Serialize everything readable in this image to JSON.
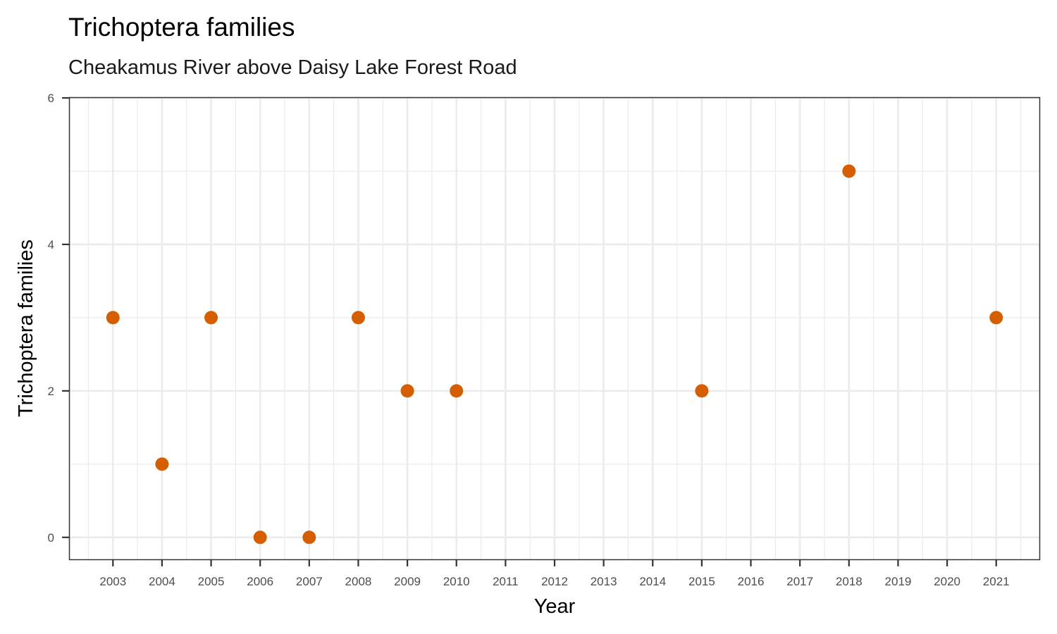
{
  "chart_data": {
    "type": "scatter",
    "title": "Trichoptera families",
    "subtitle": "Cheakamus River above Daisy Lake Forest Road",
    "xlabel": "Year",
    "ylabel": "Trichoptera families",
    "x_ticks": [
      "2003",
      "2004",
      "2005",
      "2006",
      "2007",
      "2008",
      "2009",
      "2010",
      "2011",
      "2012",
      "2013",
      "2014",
      "2015",
      "2016",
      "2017",
      "2018",
      "2019",
      "2020",
      "2021"
    ],
    "y_ticks": [
      "0",
      "2",
      "4",
      "6"
    ],
    "ylim": [
      -0.3,
      6
    ],
    "xlim": [
      2002.12,
      2021.88
    ],
    "grid": true,
    "point_color": "#d55e00",
    "points": [
      {
        "x": 2003,
        "y": 3
      },
      {
        "x": 2004,
        "y": 1
      },
      {
        "x": 2005,
        "y": 3
      },
      {
        "x": 2006,
        "y": 0
      },
      {
        "x": 2007,
        "y": 0
      },
      {
        "x": 2008,
        "y": 3
      },
      {
        "x": 2009,
        "y": 2
      },
      {
        "x": 2010,
        "y": 2
      },
      {
        "x": 2015,
        "y": 2
      },
      {
        "x": 2018,
        "y": 5
      },
      {
        "x": 2021,
        "y": 3
      }
    ]
  }
}
